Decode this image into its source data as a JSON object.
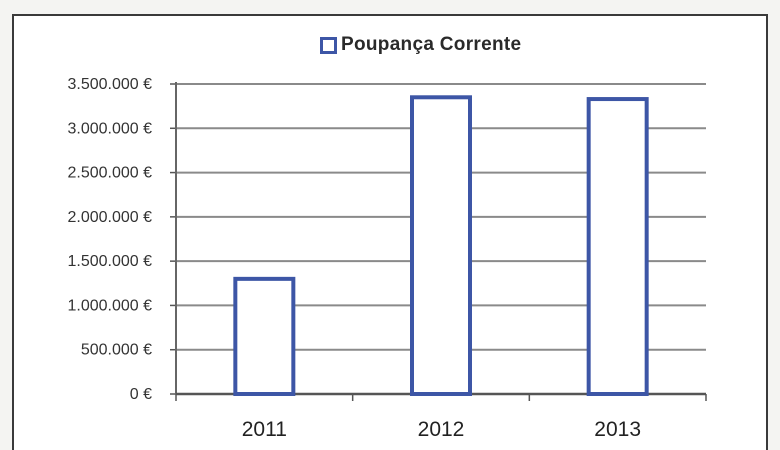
{
  "chart_data": {
    "type": "bar",
    "categories": [
      "2011",
      "2012",
      "2013"
    ],
    "series": [
      {
        "name": "Poupança Corrente",
        "values": [
          1300000,
          3350000,
          3330000
        ]
      }
    ],
    "ylim": [
      0,
      3500000
    ],
    "yticks": [
      0,
      500000,
      1000000,
      1500000,
      2000000,
      2500000,
      3000000,
      3500000
    ],
    "ytick_labels": [
      "0 €",
      "500.000 €",
      "1.000.000 €",
      "1.500.000 €",
      "2.000.000 €",
      "2.500.000 €",
      "3.000.000 €",
      "3.500.000 €"
    ],
    "title": "",
    "xlabel": "",
    "ylabel": "",
    "grid": true,
    "legend_position": "top",
    "bar_fill": "#ffffff",
    "bar_edge": "#3d56a6",
    "gridline_color": "#8a8a8a"
  }
}
